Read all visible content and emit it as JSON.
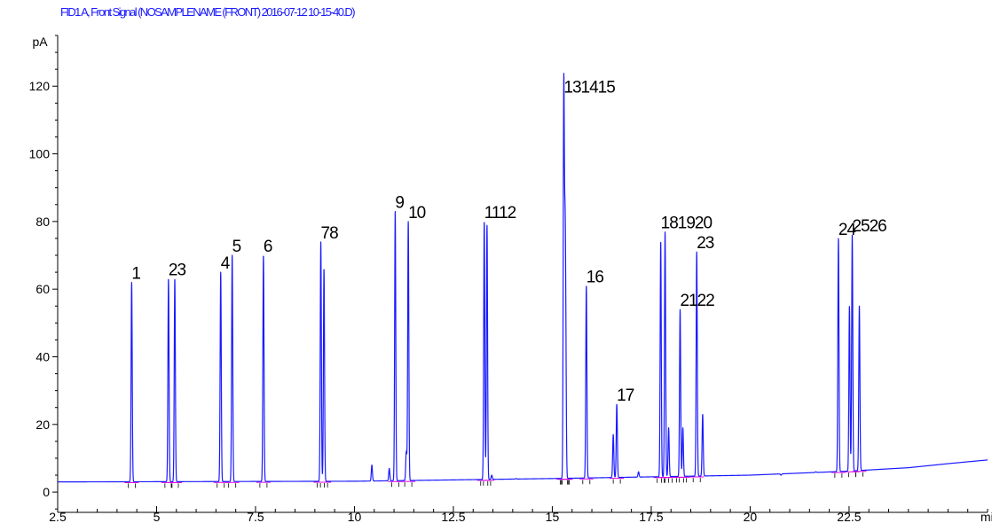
{
  "header": {
    "signal_title": "FID1 A, Front Signal (NOSAMPLENAME (FRONT) 2016-07-12 10-15-40.D)"
  },
  "chart_data": {
    "type": "line",
    "title": "FID1 A, Front Signal (NOSAMPLENAME (FRONT) 2016-07-12 10-15-40.D)",
    "xlabel": "min",
    "ylabel": "pA",
    "xlim": [
      2.5,
      26.0
    ],
    "ylim": [
      -6,
      135
    ],
    "x_ticks": [
      2.5,
      5,
      7.5,
      10,
      12.5,
      15,
      17.5,
      20,
      22.5
    ],
    "x_tick_labels": [
      "2.5",
      "5",
      "7.5",
      "10",
      "12.5",
      "15",
      "17.5",
      "20",
      "22.5"
    ],
    "y_ticks": [
      0,
      20,
      40,
      60,
      80,
      100,
      120
    ],
    "y_tick_labels": [
      "0",
      "20",
      "40",
      "60",
      "80",
      "100",
      "120"
    ],
    "grid": false,
    "baseline": [
      [
        2.5,
        3.0
      ],
      [
        10.0,
        3.2
      ],
      [
        15.0,
        4.0
      ],
      [
        17.5,
        4.5
      ],
      [
        20.0,
        5.0
      ],
      [
        22.5,
        6.2
      ],
      [
        24.0,
        7.2
      ],
      [
        25.0,
        8.4
      ],
      [
        26.0,
        9.5
      ]
    ],
    "peaks": [
      {
        "label": "1",
        "rt": 4.37,
        "height": 62
      },
      {
        "label": "2",
        "rt": 5.3,
        "height": 63
      },
      {
        "label": "3",
        "rt": 5.46,
        "height": 63
      },
      {
        "label": "4",
        "rt": 6.62,
        "height": 65
      },
      {
        "label": "5",
        "rt": 6.91,
        "height": 70
      },
      {
        "label": "6",
        "rt": 7.7,
        "height": 70
      },
      {
        "label": "7",
        "rt": 9.15,
        "height": 74
      },
      {
        "label": "8",
        "rt": 9.23,
        "height": 66
      },
      {
        "label": "9",
        "rt": 11.03,
        "height": 83
      },
      {
        "label": "10",
        "rt": 11.36,
        "height": 80
      },
      {
        "label": "11",
        "rt": 13.28,
        "height": 80
      },
      {
        "label": "12",
        "rt": 13.35,
        "height": 79
      },
      {
        "label": "13",
        "rt": 15.29,
        "height": 117
      },
      {
        "label": "14",
        "rt": 15.32,
        "height": 62
      },
      {
        "label": "15",
        "rt": 15.34,
        "height": 40
      },
      {
        "label": "16",
        "rt": 15.86,
        "height": 61
      },
      {
        "label": "17",
        "rt": 16.63,
        "height": 26
      },
      {
        "label": "18",
        "rt": 17.74,
        "height": 74
      },
      {
        "label": "19",
        "rt": 17.85,
        "height": 77
      },
      {
        "label": "20",
        "rt": 17.94,
        "height": 19
      },
      {
        "label": "21",
        "rt": 18.23,
        "height": 54
      },
      {
        "label": "22",
        "rt": 18.3,
        "height": 19
      },
      {
        "label": "23",
        "rt": 18.65,
        "height": 71
      },
      {
        "label": "24",
        "rt": 22.23,
        "height": 75
      },
      {
        "label": "25",
        "rt": 22.58,
        "height": 76
      },
      {
        "label": "26",
        "rt": 22.76,
        "height": 55
      }
    ],
    "minor_peaks": [
      {
        "rt": 10.44,
        "height": 8
      },
      {
        "rt": 10.88,
        "height": 7
      },
      {
        "rt": 11.31,
        "height": 12
      },
      {
        "rt": 13.47,
        "height": 5
      },
      {
        "rt": 14.08,
        "height": 4
      },
      {
        "rt": 16.54,
        "height": 17
      },
      {
        "rt": 17.18,
        "height": 6
      },
      {
        "rt": 18.8,
        "height": 23
      },
      {
        "rt": 19.85,
        "height": 5
      },
      {
        "rt": 20.78,
        "height": 5
      },
      {
        "rt": 21.66,
        "height": 6
      },
      {
        "rt": 22.51,
        "height": 55
      }
    ],
    "colors": {
      "signal": "#1a1aff",
      "integration_baseline": "#e000e0",
      "axes": "#000000"
    }
  }
}
